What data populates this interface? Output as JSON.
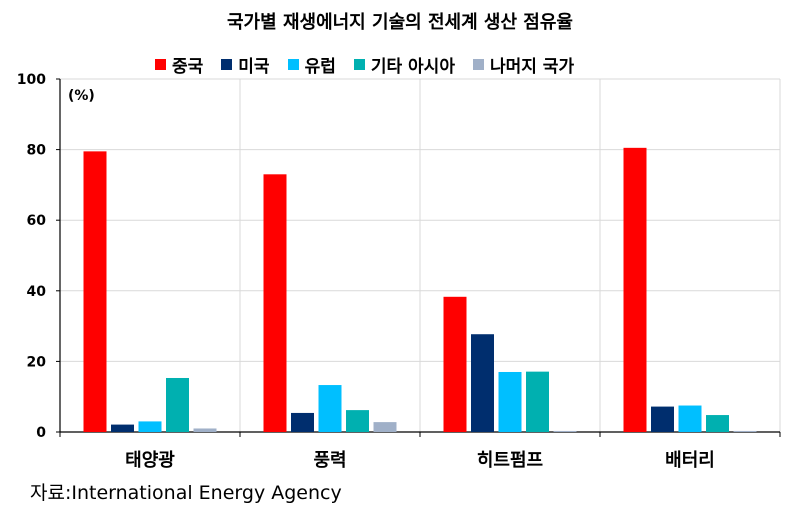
{
  "title": "국가별 재생에너지 기술의 전세계 생산 점유율",
  "unit_label": "(%)",
  "source": "자료:International Energy Agency",
  "chart_data": {
    "type": "bar",
    "title": "국가별 재생에너지 기술의 전세계 생산 점유율",
    "xlabel": "",
    "ylabel": "(%)",
    "ylim": [
      0,
      100
    ],
    "yticks": [
      0,
      20,
      40,
      60,
      80,
      100
    ],
    "grid": true,
    "legend_position": "top",
    "categories": [
      "태양광",
      "풍력",
      "히트펌프",
      "배터리"
    ],
    "series": [
      {
        "name": "중국",
        "color": "#ff0000",
        "values": [
          79.5,
          73,
          38.3,
          80.5
        ]
      },
      {
        "name": "미국",
        "color": "#002e6e",
        "values": [
          2.1,
          5.4,
          27.7,
          7.2
        ]
      },
      {
        "name": "유럽",
        "color": "#00bfff",
        "values": [
          3,
          13.3,
          17,
          7.5
        ]
      },
      {
        "name": "기타 아시아",
        "color": "#00b0b0",
        "values": [
          15.3,
          6.2,
          17.1,
          4.8
        ]
      },
      {
        "name": "나머지 국가",
        "color": "#a0b0c8",
        "values": [
          1,
          2.8,
          0.3,
          0.3
        ]
      }
    ]
  }
}
